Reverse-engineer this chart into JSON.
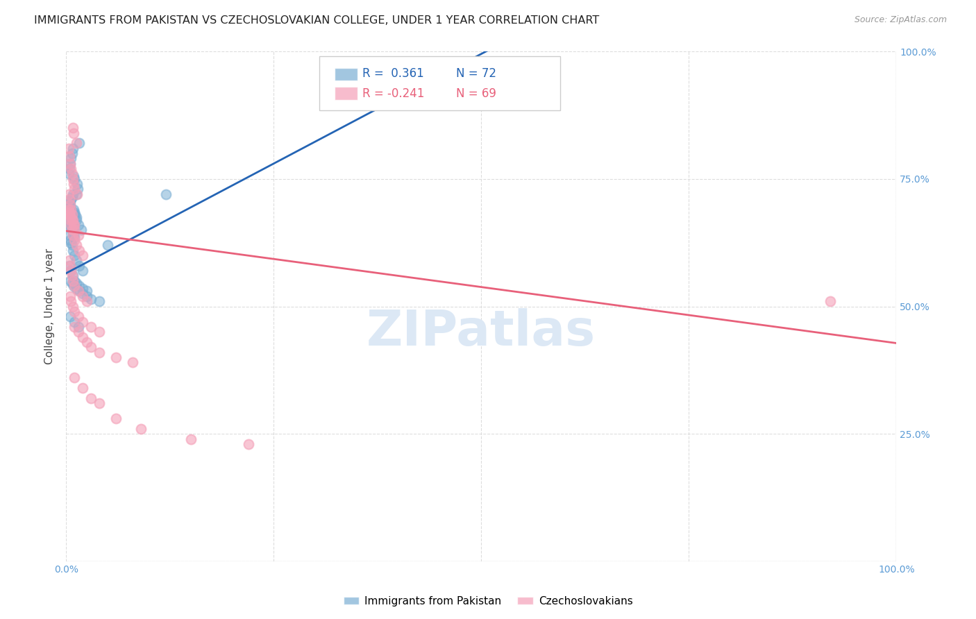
{
  "title": "IMMIGRANTS FROM PAKISTAN VS CZECHOSLOVAKIAN COLLEGE, UNDER 1 YEAR CORRELATION CHART",
  "source": "Source: ZipAtlas.com",
  "ylabel": "College, Under 1 year",
  "xlim": [
    0.0,
    1.0
  ],
  "ylim": [
    0.0,
    1.0
  ],
  "blue_color": "#7bafd4",
  "pink_color": "#f4a0b8",
  "blue_line_color": "#2464b4",
  "pink_line_color": "#e8607a",
  "watermark_text": "ZIPatlas",
  "series1_label": "Immigrants from Pakistan",
  "series2_label": "Czechoslovakians",
  "blue_scatter_x": [
    0.003,
    0.004,
    0.005,
    0.006,
    0.007,
    0.008,
    0.009,
    0.01,
    0.011,
    0.012,
    0.003,
    0.004,
    0.005,
    0.006,
    0.007,
    0.008,
    0.009,
    0.01,
    0.012,
    0.014,
    0.003,
    0.004,
    0.005,
    0.006,
    0.007,
    0.008,
    0.009,
    0.01,
    0.013,
    0.016,
    0.004,
    0.005,
    0.006,
    0.007,
    0.008,
    0.01,
    0.012,
    0.015,
    0.018,
    0.004,
    0.005,
    0.006,
    0.007,
    0.008,
    0.01,
    0.012,
    0.016,
    0.02,
    0.004,
    0.006,
    0.008,
    0.01,
    0.012,
    0.016,
    0.02,
    0.025,
    0.005,
    0.007,
    0.009,
    0.012,
    0.016,
    0.02,
    0.025,
    0.03,
    0.04,
    0.005,
    0.01,
    0.015,
    0.05,
    0.12,
    0.34
  ],
  "blue_scatter_y": [
    0.695,
    0.7,
    0.705,
    0.71,
    0.715,
    0.72,
    0.69,
    0.685,
    0.68,
    0.675,
    0.67,
    0.665,
    0.66,
    0.655,
    0.65,
    0.645,
    0.64,
    0.635,
    0.72,
    0.73,
    0.76,
    0.77,
    0.78,
    0.79,
    0.8,
    0.81,
    0.755,
    0.75,
    0.74,
    0.82,
    0.7,
    0.695,
    0.69,
    0.685,
    0.68,
    0.675,
    0.67,
    0.66,
    0.65,
    0.64,
    0.63,
    0.625,
    0.62,
    0.61,
    0.6,
    0.59,
    0.58,
    0.57,
    0.58,
    0.57,
    0.56,
    0.55,
    0.545,
    0.54,
    0.535,
    0.53,
    0.55,
    0.545,
    0.54,
    0.535,
    0.53,
    0.525,
    0.52,
    0.515,
    0.51,
    0.48,
    0.47,
    0.46,
    0.62,
    0.72,
    0.96
  ],
  "pink_scatter_x": [
    0.003,
    0.004,
    0.005,
    0.006,
    0.007,
    0.008,
    0.009,
    0.01,
    0.012,
    0.003,
    0.004,
    0.005,
    0.006,
    0.007,
    0.008,
    0.009,
    0.01,
    0.013,
    0.003,
    0.004,
    0.005,
    0.006,
    0.007,
    0.008,
    0.009,
    0.01,
    0.015,
    0.004,
    0.005,
    0.006,
    0.007,
    0.008,
    0.01,
    0.012,
    0.016,
    0.02,
    0.004,
    0.005,
    0.006,
    0.007,
    0.008,
    0.01,
    0.015,
    0.02,
    0.025,
    0.005,
    0.006,
    0.008,
    0.01,
    0.015,
    0.02,
    0.03,
    0.04,
    0.01,
    0.015,
    0.02,
    0.025,
    0.03,
    0.04,
    0.06,
    0.08,
    0.01,
    0.02,
    0.03,
    0.04,
    0.06,
    0.09,
    0.15,
    0.22,
    0.92
  ],
  "pink_scatter_y": [
    0.69,
    0.685,
    0.68,
    0.675,
    0.67,
    0.85,
    0.84,
    0.66,
    0.82,
    0.81,
    0.795,
    0.78,
    0.77,
    0.76,
    0.75,
    0.74,
    0.73,
    0.72,
    0.72,
    0.71,
    0.7,
    0.69,
    0.68,
    0.67,
    0.66,
    0.65,
    0.64,
    0.68,
    0.67,
    0.66,
    0.65,
    0.64,
    0.63,
    0.62,
    0.61,
    0.6,
    0.59,
    0.58,
    0.57,
    0.56,
    0.55,
    0.54,
    0.53,
    0.52,
    0.51,
    0.52,
    0.51,
    0.5,
    0.49,
    0.48,
    0.47,
    0.46,
    0.45,
    0.46,
    0.45,
    0.44,
    0.43,
    0.42,
    0.41,
    0.4,
    0.39,
    0.36,
    0.34,
    0.32,
    0.31,
    0.28,
    0.26,
    0.24,
    0.23,
    0.51
  ],
  "blue_line_x": [
    0.0,
    1.0
  ],
  "blue_line_y": [
    0.565,
    1.425
  ],
  "pink_line_x": [
    0.0,
    1.0
  ],
  "pink_line_y": [
    0.648,
    0.428
  ],
  "background_color": "#ffffff",
  "grid_color": "#dddddd",
  "tick_color": "#5b9bd5",
  "watermark_color": "#dce8f5",
  "title_fontsize": 11.5,
  "tick_fontsize": 10,
  "ylabel_fontsize": 11
}
